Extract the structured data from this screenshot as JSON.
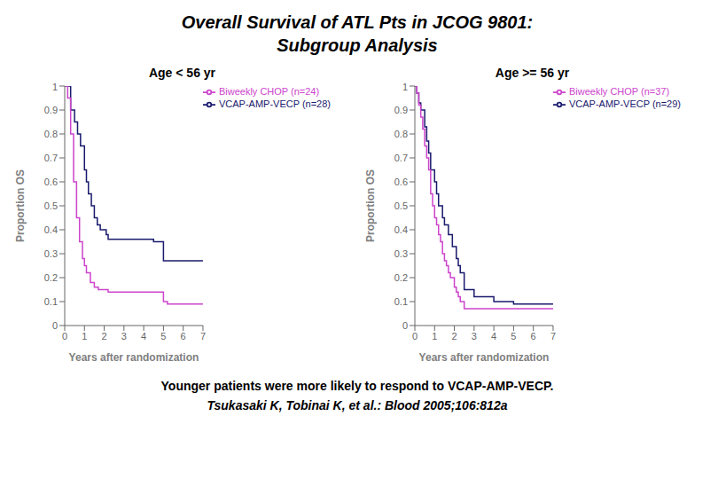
{
  "title": [
    "Overall Survival of ATL Pts in JCOG 9801:",
    "Subgroup Analysis"
  ],
  "annotations": [
    "Younger patients were more likely to respond to VCAP-AMP-VECP.",
    "Tsukasaki K, Tobinai K, et al.: Blood 2005;106:812a"
  ],
  "chart_data": [
    {
      "type": "line",
      "title": "Age < 56 yr",
      "x_label": "Years after randomization",
      "y_label": "Proportion OS",
      "xlim": [
        0,
        7
      ],
      "ylim": [
        0,
        1
      ],
      "xticks": [
        0,
        1,
        2,
        3,
        4,
        5,
        6,
        7
      ],
      "yticks": [
        0,
        0.1,
        0.2,
        0.3,
        0.4,
        0.5,
        0.6,
        0.7,
        0.8,
        0.9,
        1
      ],
      "grid": false,
      "legend": "upper right",
      "line_style": "step",
      "series": [
        {
          "name": "VCAP-AMP-VECP (n=28)",
          "color": "#1a1a6e",
          "x": [
            0,
            0.15,
            0.3,
            0.5,
            0.65,
            0.8,
            1.0,
            1.1,
            1.2,
            1.35,
            1.5,
            1.65,
            1.8,
            2.0,
            2.1,
            2.2,
            3.0,
            4.0,
            4.5,
            5.0,
            5.5,
            6.2,
            7.0
          ],
          "values": [
            1.0,
            1.0,
            0.9,
            0.85,
            0.8,
            0.75,
            0.65,
            0.6,
            0.55,
            0.5,
            0.45,
            0.42,
            0.4,
            0.4,
            0.38,
            0.36,
            0.36,
            0.36,
            0.35,
            0.27,
            0.27,
            0.27,
            0.27
          ]
        },
        {
          "name": "Biweekly CHOP (n=24)",
          "color": "#cc44cc",
          "x": [
            0,
            0.15,
            0.3,
            0.45,
            0.6,
            0.75,
            0.9,
            1.0,
            1.1,
            1.3,
            1.5,
            1.7,
            2.0,
            2.2,
            3.0,
            4.0,
            4.5,
            5.0,
            5.2,
            5.5,
            7.0
          ],
          "values": [
            1.0,
            0.95,
            0.8,
            0.6,
            0.45,
            0.35,
            0.28,
            0.25,
            0.22,
            0.18,
            0.16,
            0.15,
            0.15,
            0.14,
            0.14,
            0.14,
            0.14,
            0.1,
            0.09,
            0.09,
            0.09
          ]
        }
      ]
    },
    {
      "type": "line",
      "title": "Age >= 56 yr",
      "x_label": "Years after randomization",
      "y_label": "Proportion OS",
      "xlim": [
        0,
        7
      ],
      "ylim": [
        0,
        1
      ],
      "xticks": [
        0,
        1,
        2,
        3,
        4,
        5,
        6,
        7
      ],
      "yticks": [
        0,
        0.1,
        0.2,
        0.3,
        0.4,
        0.5,
        0.6,
        0.7,
        0.8,
        0.9,
        1
      ],
      "grid": false,
      "legend": "upper right",
      "line_style": "step",
      "series": [
        {
          "name": "VCAP-AMP-VECP (n=29)",
          "color": "#1a1a6e",
          "x": [
            0,
            0.1,
            0.2,
            0.3,
            0.5,
            0.6,
            0.7,
            0.8,
            1.0,
            1.1,
            1.2,
            1.4,
            1.5,
            1.7,
            1.9,
            2.1,
            2.2,
            2.3,
            2.5,
            3.0,
            3.5,
            4.0,
            4.5,
            5.0,
            5.5,
            6.0,
            7.0
          ],
          "values": [
            1.0,
            0.97,
            0.93,
            0.9,
            0.83,
            0.77,
            0.72,
            0.65,
            0.6,
            0.55,
            0.5,
            0.45,
            0.42,
            0.38,
            0.33,
            0.28,
            0.25,
            0.22,
            0.15,
            0.12,
            0.12,
            0.1,
            0.1,
            0.09,
            0.09,
            0.09,
            0.09
          ]
        },
        {
          "name": "Biweekly CHOP (n=37)",
          "color": "#cc44cc",
          "x": [
            0,
            0.1,
            0.2,
            0.3,
            0.4,
            0.5,
            0.6,
            0.7,
            0.8,
            0.9,
            1.0,
            1.1,
            1.2,
            1.3,
            1.4,
            1.5,
            1.6,
            1.7,
            1.8,
            2.0,
            2.1,
            2.2,
            2.3,
            2.5,
            3.0,
            3.5,
            4.0,
            7.0
          ],
          "values": [
            1.0,
            0.97,
            0.92,
            0.87,
            0.82,
            0.75,
            0.7,
            0.65,
            0.55,
            0.5,
            0.45,
            0.42,
            0.38,
            0.35,
            0.3,
            0.27,
            0.25,
            0.22,
            0.2,
            0.16,
            0.14,
            0.12,
            0.1,
            0.07,
            0.07,
            0.07,
            0.07,
            0.07
          ]
        }
      ]
    }
  ]
}
